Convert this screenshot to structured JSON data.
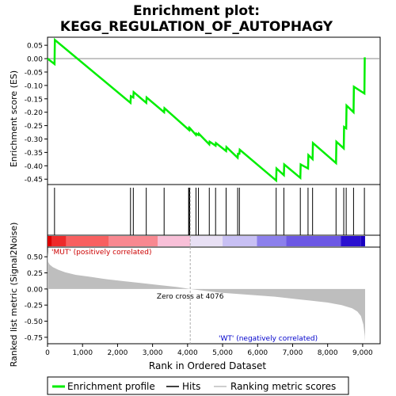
{
  "title_line1": "Enrichment plot:",
  "title_line2": "KEGG_REGULATION_OF_AUTOPHAGY",
  "chart_data": {
    "type": "line",
    "es_panel": {
      "ylabel": "Enrichment score (ES)",
      "ylim": [
        -0.47,
        0.08
      ],
      "yticks": [
        0.05,
        0.0,
        -0.05,
        -0.1,
        -0.15,
        -0.2,
        -0.25,
        -0.3,
        -0.35,
        -0.4,
        -0.45
      ],
      "ytick_labels": [
        "0.05",
        "0.00",
        "-0.05",
        "-0.10",
        "-0.15",
        "-0.20",
        "-0.25",
        "-0.30",
        "-0.35",
        "-0.40",
        "-0.45"
      ],
      "line_color": "#00ee00",
      "series": {
        "name": "Enrichment profile",
        "x": [
          0,
          200,
          210,
          2370,
          2380,
          2450,
          2460,
          2820,
          2830,
          3330,
          3340,
          4030,
          4040,
          4060,
          4070,
          4240,
          4250,
          4310,
          4320,
          4620,
          4630,
          4800,
          4810,
          5100,
          5110,
          5430,
          5440,
          5480,
          5490,
          6530,
          6540,
          6750,
          6760,
          7220,
          7230,
          7440,
          7450,
          7570,
          7580,
          8240,
          8250,
          8460,
          8470,
          8530,
          8540,
          8740,
          8750,
          9050,
          9060
        ],
        "y": [
          0.0,
          -0.02,
          0.07,
          -0.165,
          -0.14,
          -0.145,
          -0.125,
          -0.165,
          -0.145,
          -0.2,
          -0.185,
          -0.265,
          -0.26,
          -0.265,
          -0.26,
          -0.285,
          -0.28,
          -0.285,
          -0.28,
          -0.32,
          -0.31,
          -0.325,
          -0.315,
          -0.345,
          -0.33,
          -0.37,
          -0.355,
          -0.355,
          -0.34,
          -0.455,
          -0.41,
          -0.435,
          -0.395,
          -0.445,
          -0.395,
          -0.41,
          -0.36,
          -0.375,
          -0.315,
          -0.39,
          -0.31,
          -0.335,
          -0.255,
          -0.26,
          -0.175,
          -0.2,
          -0.105,
          -0.13,
          0.005
        ]
      }
    },
    "hits": {
      "name": "Hits",
      "x": [
        200,
        2370,
        2450,
        2820,
        3330,
        4030,
        4050,
        4060,
        4240,
        4310,
        4620,
        4800,
        5100,
        5430,
        5480,
        6530,
        6750,
        7220,
        7440,
        7570,
        8240,
        8460,
        8530,
        8740,
        9050
      ]
    },
    "color_bar": {
      "labels": [
        "'MUT' (positively correlated)",
        "'WT' (negatively correlated)"
      ],
      "segments": [
        {
          "from": 0,
          "to": 130,
          "color": "#dd0000"
        },
        {
          "from": 130,
          "to": 530,
          "color": "#ee2a2a"
        },
        {
          "from": 530,
          "to": 1750,
          "color": "#f86060"
        },
        {
          "from": 1750,
          "to": 3150,
          "color": "#f88890"
        },
        {
          "from": 3150,
          "to": 4076,
          "color": "#f8c0d8"
        },
        {
          "from": 4076,
          "to": 5000,
          "color": "#e8e0f4"
        },
        {
          "from": 5000,
          "to": 5980,
          "color": "#c8c0f4"
        },
        {
          "from": 5980,
          "to": 6820,
          "color": "#8c80ec"
        },
        {
          "from": 6820,
          "to": 8380,
          "color": "#6c58e4"
        },
        {
          "from": 8380,
          "to": 8950,
          "color": "#2a10d0"
        },
        {
          "from": 8950,
          "to": 9070,
          "color": "#1a00c0"
        }
      ]
    },
    "metric_panel": {
      "name": "Ranking metric scores",
      "ylabel": "Ranked list metric (Signal2Noise)",
      "ylim": [
        -0.85,
        0.65
      ],
      "yticks": [
        0.5,
        0.25,
        0.0,
        -0.25,
        -0.5,
        -0.75
      ],
      "ytick_labels": [
        "0.50",
        "0.25",
        "0.00",
        "-0.25",
        "-0.50",
        "-0.75"
      ],
      "fill_color": "#bebebe",
      "zero_cross_label": "Zero cross at 4076",
      "zero_cross_x": 4076,
      "curve": {
        "x": [
          0,
          20,
          60,
          150,
          300,
          500,
          800,
          1200,
          1700,
          2200,
          2700,
          3200,
          3700,
          4076,
          4500,
          5000,
          5500,
          6000,
          6500,
          7000,
          7500,
          8000,
          8400,
          8700,
          8850,
          8950,
          9020,
          9060,
          9070
        ],
        "y": [
          0.58,
          0.42,
          0.38,
          0.34,
          0.3,
          0.26,
          0.22,
          0.19,
          0.15,
          0.12,
          0.09,
          0.06,
          0.03,
          0.0,
          -0.03,
          -0.06,
          -0.08,
          -0.1,
          -0.12,
          -0.15,
          -0.18,
          -0.21,
          -0.25,
          -0.3,
          -0.35,
          -0.42,
          -0.55,
          -0.72,
          -0.82
        ]
      }
    },
    "xlabel": "Rank in Ordered Dataset",
    "xlim": [
      0,
      9500
    ],
    "xticks": [
      0,
      1000,
      2000,
      3000,
      4000,
      5000,
      6000,
      7000,
      8000,
      9000
    ],
    "xtick_labels": [
      "0",
      "1,000",
      "2,000",
      "3,000",
      "4,000",
      "5,000",
      "6,000",
      "7,000",
      "8,000",
      "9,000"
    ],
    "legend": {
      "placement": "bottom",
      "entries": [
        "Enrichment profile",
        "Hits",
        "Ranking metric scores"
      ]
    }
  }
}
